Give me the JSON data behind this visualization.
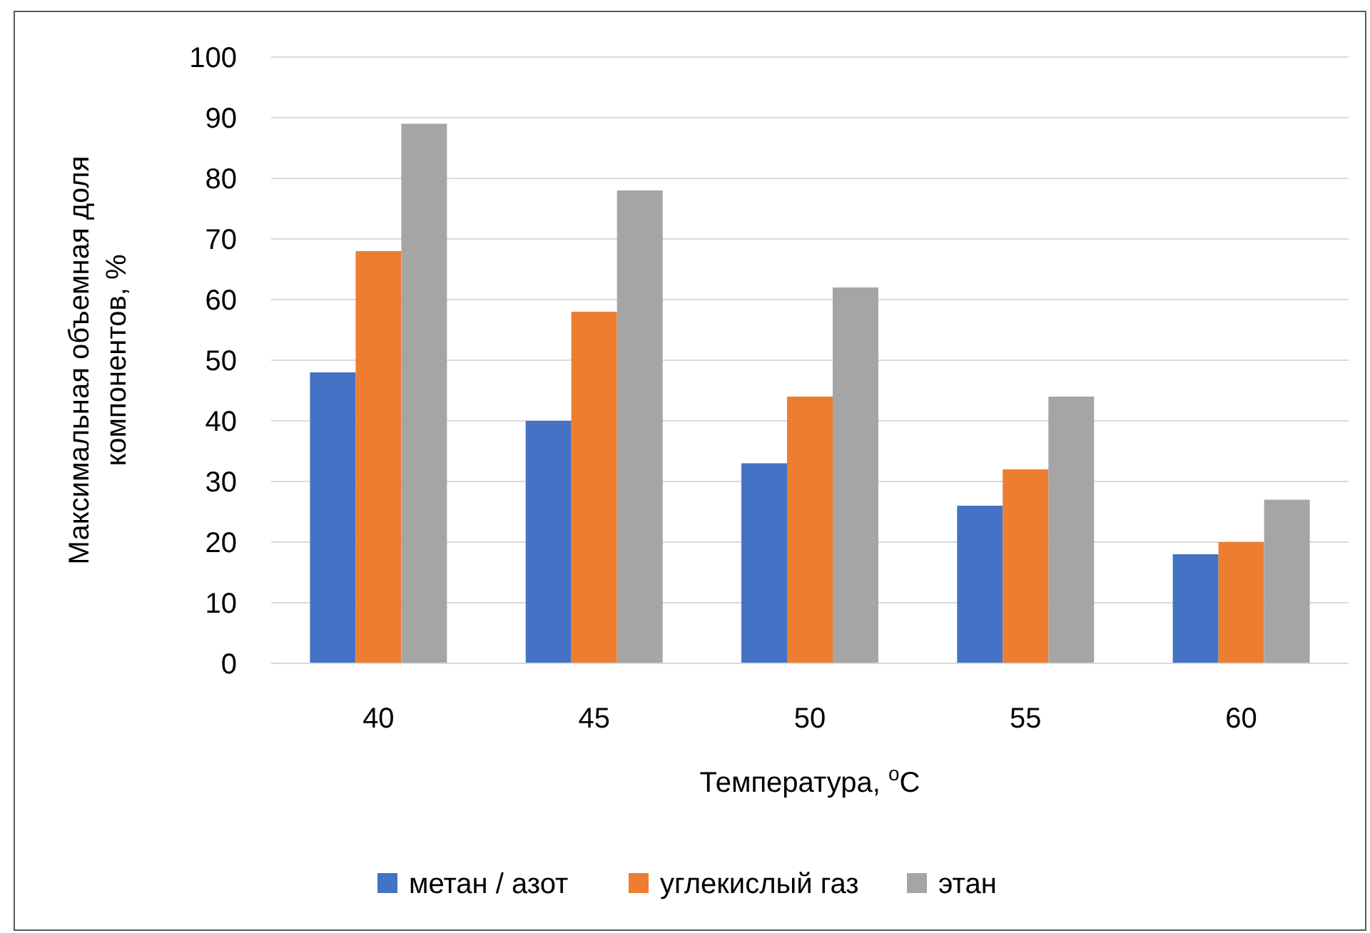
{
  "chart_data": {
    "type": "bar",
    "xlabel": "Температура, $^{o}$C",
    "ylabel": "Максимальная объемная доля компонентов, %",
    "categories": [
      "40",
      "45",
      "50",
      "55",
      "60"
    ],
    "series": [
      {
        "name": "метан / азот",
        "color": "#4472c4",
        "values": [
          48,
          40,
          33,
          26,
          18
        ]
      },
      {
        "name": "углекислый газ",
        "color": "#ed7d31",
        "values": [
          68,
          58,
          44,
          32,
          20
        ]
      },
      {
        "name": "этан",
        "color": "#a5a5a5",
        "values": [
          89,
          78,
          62,
          44,
          27
        ]
      }
    ],
    "ylim": [
      0,
      100
    ],
    "yticks": [
      0,
      10,
      20,
      30,
      40,
      50,
      60,
      70,
      80,
      90,
      100
    ],
    "grid": "y",
    "legend": "bottom"
  }
}
